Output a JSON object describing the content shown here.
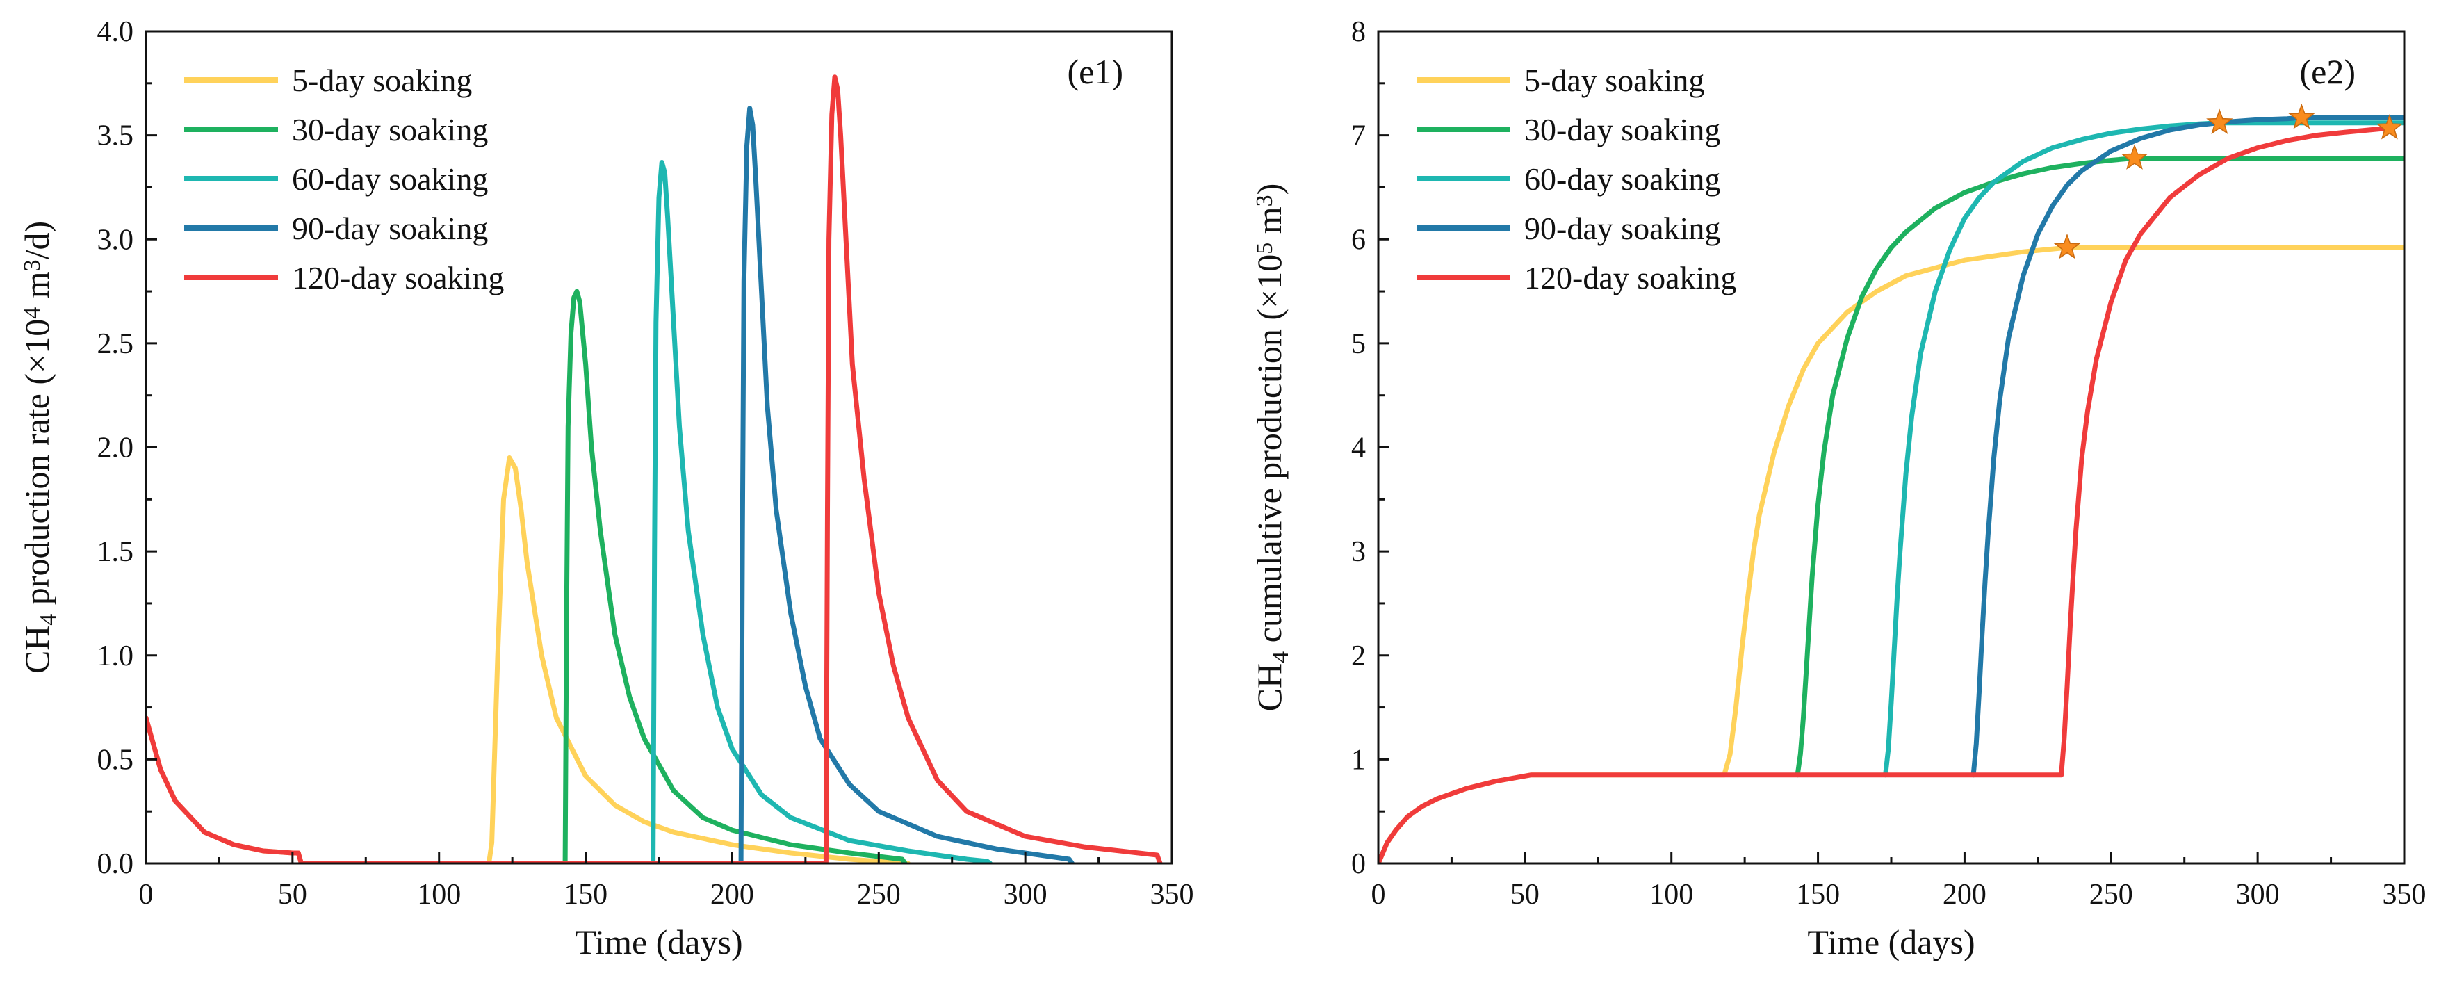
{
  "chart_data": [
    {
      "type": "line",
      "panel_label": "(e1)",
      "xlabel": "Time (days)",
      "ylabel_parts": [
        "CH",
        "4",
        " production rate (×10",
        "4",
        " m",
        "3",
        "/d)"
      ],
      "xlim": [
        0,
        350
      ],
      "ylim": [
        0,
        4.0
      ],
      "xticks": [
        "0",
        "50",
        "100",
        "150",
        "200",
        "250",
        "300",
        "350"
      ],
      "yticks": [
        "0.0",
        "0.5",
        "1.0",
        "1.5",
        "2.0",
        "2.5",
        "3.0",
        "3.5",
        "4.0"
      ],
      "legend_position": "top-left",
      "grid": false,
      "series": [
        {
          "name": "5-day soaking",
          "color": "#FFD25A",
          "x": [
            0,
            5,
            10,
            20,
            30,
            40,
            50,
            52,
            53,
            100,
            117,
            118,
            120,
            122,
            124,
            126,
            128,
            130,
            135,
            140,
            150,
            160,
            170,
            180,
            200,
            220,
            240,
            260
          ],
          "y": [
            0.7,
            0.45,
            0.3,
            0.15,
            0.09,
            0.06,
            0.05,
            0.05,
            0.0,
            0.0,
            0.0,
            0.1,
            1.0,
            1.75,
            1.95,
            1.9,
            1.7,
            1.45,
            1.0,
            0.7,
            0.42,
            0.28,
            0.2,
            0.15,
            0.09,
            0.05,
            0.02,
            0.0
          ]
        },
        {
          "name": "30-day soaking",
          "color": "#1EB15F",
          "x": [
            143,
            143.5,
            144,
            145,
            146,
            147,
            148,
            150,
            152,
            155,
            160,
            165,
            170,
            180,
            190,
            200,
            220,
            240,
            258,
            259
          ],
          "y": [
            0.0,
            1.2,
            2.1,
            2.55,
            2.72,
            2.75,
            2.7,
            2.4,
            2.0,
            1.6,
            1.1,
            0.8,
            0.6,
            0.35,
            0.22,
            0.16,
            0.09,
            0.05,
            0.02,
            0.0
          ]
        },
        {
          "name": "60-day soaking",
          "color": "#1EB7B1",
          "x": [
            173,
            173.5,
            174,
            175,
            176,
            177,
            178,
            180,
            182,
            185,
            190,
            195,
            200,
            210,
            220,
            240,
            260,
            280,
            287,
            288
          ],
          "y": [
            0.0,
            1.5,
            2.6,
            3.2,
            3.37,
            3.32,
            3.1,
            2.6,
            2.1,
            1.6,
            1.1,
            0.75,
            0.55,
            0.33,
            0.22,
            0.11,
            0.06,
            0.02,
            0.01,
            0.0
          ]
        },
        {
          "name": "90-day soaking",
          "color": "#2279A8",
          "x": [
            203,
            203.5,
            204,
            205,
            206,
            207,
            208,
            210,
            212,
            215,
            220,
            225,
            230,
            240,
            250,
            270,
            290,
            310,
            315,
            316
          ],
          "y": [
            0.0,
            1.6,
            2.8,
            3.45,
            3.63,
            3.55,
            3.3,
            2.75,
            2.2,
            1.7,
            1.2,
            0.85,
            0.6,
            0.38,
            0.25,
            0.13,
            0.07,
            0.03,
            0.02,
            0.0
          ]
        },
        {
          "name": "120-day soaking",
          "color": "#F03B3B",
          "x": [
            0,
            5,
            10,
            20,
            30,
            40,
            50,
            52,
            53,
            100,
            150,
            200,
            232,
            232.5,
            233,
            234,
            235,
            236,
            237,
            239,
            241,
            245,
            250,
            255,
            260,
            270,
            280,
            300,
            320,
            345,
            346
          ],
          "y": [
            0.7,
            0.45,
            0.3,
            0.15,
            0.09,
            0.06,
            0.05,
            0.05,
            0.0,
            0.0,
            0.0,
            0.0,
            0.0,
            1.7,
            3.0,
            3.6,
            3.78,
            3.72,
            3.5,
            2.95,
            2.4,
            1.85,
            1.3,
            0.95,
            0.7,
            0.4,
            0.25,
            0.13,
            0.08,
            0.04,
            0.0
          ]
        }
      ]
    },
    {
      "type": "line",
      "panel_label": "(e2)",
      "xlabel": "Time (days)",
      "ylabel_parts": [
        "CH",
        "4",
        " cumulative production (×10",
        "5",
        " m",
        "3",
        ")"
      ],
      "xlim": [
        0,
        350
      ],
      "ylim": [
        0,
        8
      ],
      "xticks": [
        "0",
        "50",
        "100",
        "150",
        "200",
        "250",
        "300",
        "350"
      ],
      "yticks": [
        "0",
        "1",
        "2",
        "3",
        "4",
        "5",
        "6",
        "7",
        "8"
      ],
      "legend_position": "top-left",
      "grid": false,
      "marker_color": "#F98C1E",
      "markers": [
        {
          "x": 235,
          "y": 5.92
        },
        {
          "x": 258,
          "y": 6.78
        },
        {
          "x": 287,
          "y": 7.12
        },
        {
          "x": 315,
          "y": 7.17
        },
        {
          "x": 345,
          "y": 7.07
        }
      ],
      "series": [
        {
          "name": "5-day soaking",
          "color": "#FFD25A",
          "x": [
            0,
            3,
            6,
            10,
            15,
            20,
            30,
            40,
            52,
            60,
            100,
            118,
            120,
            122,
            124,
            126,
            128,
            130,
            135,
            140,
            145,
            150,
            160,
            170,
            180,
            200,
            220,
            235,
            350
          ],
          "y": [
            0.0,
            0.2,
            0.32,
            0.45,
            0.55,
            0.62,
            0.72,
            0.79,
            0.85,
            0.85,
            0.85,
            0.85,
            1.05,
            1.5,
            2.05,
            2.55,
            3.0,
            3.35,
            3.95,
            4.4,
            4.75,
            5.0,
            5.3,
            5.5,
            5.65,
            5.8,
            5.88,
            5.92,
            5.92
          ]
        },
        {
          "name": "30-day soaking",
          "color": "#1EB15F",
          "x": [
            143,
            144,
            145,
            146,
            147,
            148,
            150,
            152,
            155,
            160,
            165,
            170,
            175,
            180,
            190,
            200,
            210,
            220,
            230,
            240,
            250,
            258,
            350
          ],
          "y": [
            0.85,
            1.05,
            1.4,
            1.85,
            2.3,
            2.75,
            3.45,
            3.95,
            4.5,
            5.05,
            5.45,
            5.72,
            5.92,
            6.07,
            6.3,
            6.45,
            6.55,
            6.63,
            6.69,
            6.73,
            6.76,
            6.78,
            6.78
          ]
        },
        {
          "name": "60-day soaking",
          "color": "#1EB7B1",
          "x": [
            173,
            174,
            175,
            176,
            177,
            178,
            180,
            182,
            185,
            190,
            195,
            200,
            205,
            210,
            220,
            230,
            240,
            250,
            260,
            270,
            280,
            287,
            350
          ],
          "y": [
            0.85,
            1.1,
            1.55,
            2.05,
            2.55,
            3.0,
            3.75,
            4.3,
            4.9,
            5.5,
            5.9,
            6.2,
            6.4,
            6.55,
            6.75,
            6.88,
            6.96,
            7.02,
            7.06,
            7.09,
            7.11,
            7.12,
            7.12
          ]
        },
        {
          "name": "90-day soaking",
          "color": "#2279A8",
          "x": [
            203,
            204,
            205,
            206,
            207,
            208,
            210,
            212,
            215,
            220,
            225,
            230,
            235,
            240,
            250,
            260,
            270,
            280,
            290,
            300,
            310,
            315,
            350
          ],
          "y": [
            0.85,
            1.15,
            1.65,
            2.2,
            2.7,
            3.15,
            3.9,
            4.45,
            5.05,
            5.65,
            6.05,
            6.32,
            6.52,
            6.66,
            6.85,
            6.97,
            7.05,
            7.1,
            7.13,
            7.15,
            7.16,
            7.17,
            7.17
          ]
        },
        {
          "name": "120-day soaking",
          "color": "#F03B3B",
          "x": [
            0,
            3,
            6,
            10,
            15,
            20,
            30,
            40,
            52,
            60,
            100,
            150,
            200,
            233,
            234,
            235,
            236,
            237,
            238,
            240,
            242,
            245,
            250,
            255,
            260,
            270,
            280,
            290,
            300,
            310,
            320,
            330,
            345
          ],
          "y": [
            0.0,
            0.2,
            0.32,
            0.45,
            0.55,
            0.62,
            0.72,
            0.79,
            0.85,
            0.85,
            0.85,
            0.85,
            0.85,
            0.85,
            1.2,
            1.7,
            2.25,
            2.75,
            3.2,
            3.9,
            4.35,
            4.85,
            5.4,
            5.8,
            6.05,
            6.4,
            6.62,
            6.78,
            6.88,
            6.95,
            7.0,
            7.03,
            7.07
          ]
        }
      ]
    }
  ]
}
